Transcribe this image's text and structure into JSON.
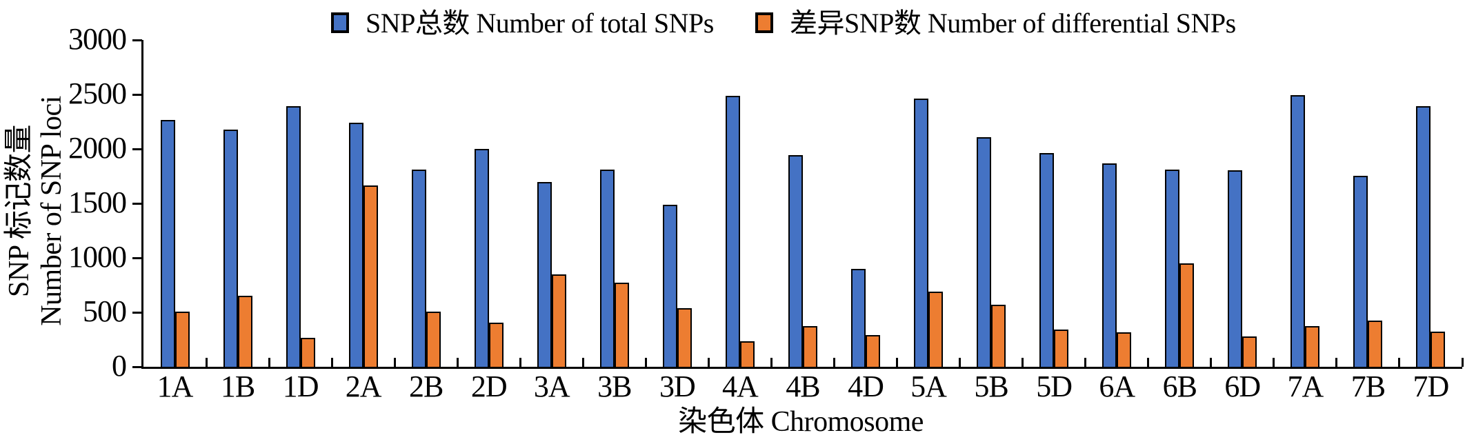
{
  "chart_data": {
    "type": "bar",
    "title": "",
    "categories": [
      "1A",
      "1B",
      "1D",
      "2A",
      "2B",
      "2D",
      "3A",
      "3B",
      "3D",
      "4A",
      "4B",
      "4D",
      "5A",
      "5B",
      "5D",
      "6A",
      "6B",
      "6D",
      "7A",
      "7B",
      "7D"
    ],
    "series": [
      {
        "name": "SNP总数 Number of total SNPs",
        "color": "#4472C4",
        "values": [
          2265,
          2175,
          2390,
          2240,
          1810,
          2000,
          1695,
          1810,
          1490,
          2485,
          1940,
          900,
          2460,
          2105,
          1960,
          1865,
          1810,
          1805,
          2495,
          1755,
          2390
        ]
      },
      {
        "name": "差异SNP数 Number of differential SNPs",
        "color": "#ED7D31",
        "values": [
          505,
          650,
          265,
          1665,
          505,
          405,
          850,
          770,
          535,
          235,
          375,
          290,
          690,
          570,
          345,
          315,
          950,
          280,
          375,
          425,
          320
        ]
      }
    ],
    "xlabel": "染色体 Chromosome",
    "ylabel_zh": "SNP 标记数量",
    "ylabel_en": "Number of SNP loci",
    "ylim": [
      0,
      3000
    ],
    "yticks": [
      0,
      500,
      1000,
      1500,
      2000,
      2500,
      3000
    ],
    "grid": false,
    "legend_position": "top",
    "bar_outline_color": "#000000",
    "axis_color": "#000000",
    "background_color": "#FFFFFF"
  }
}
